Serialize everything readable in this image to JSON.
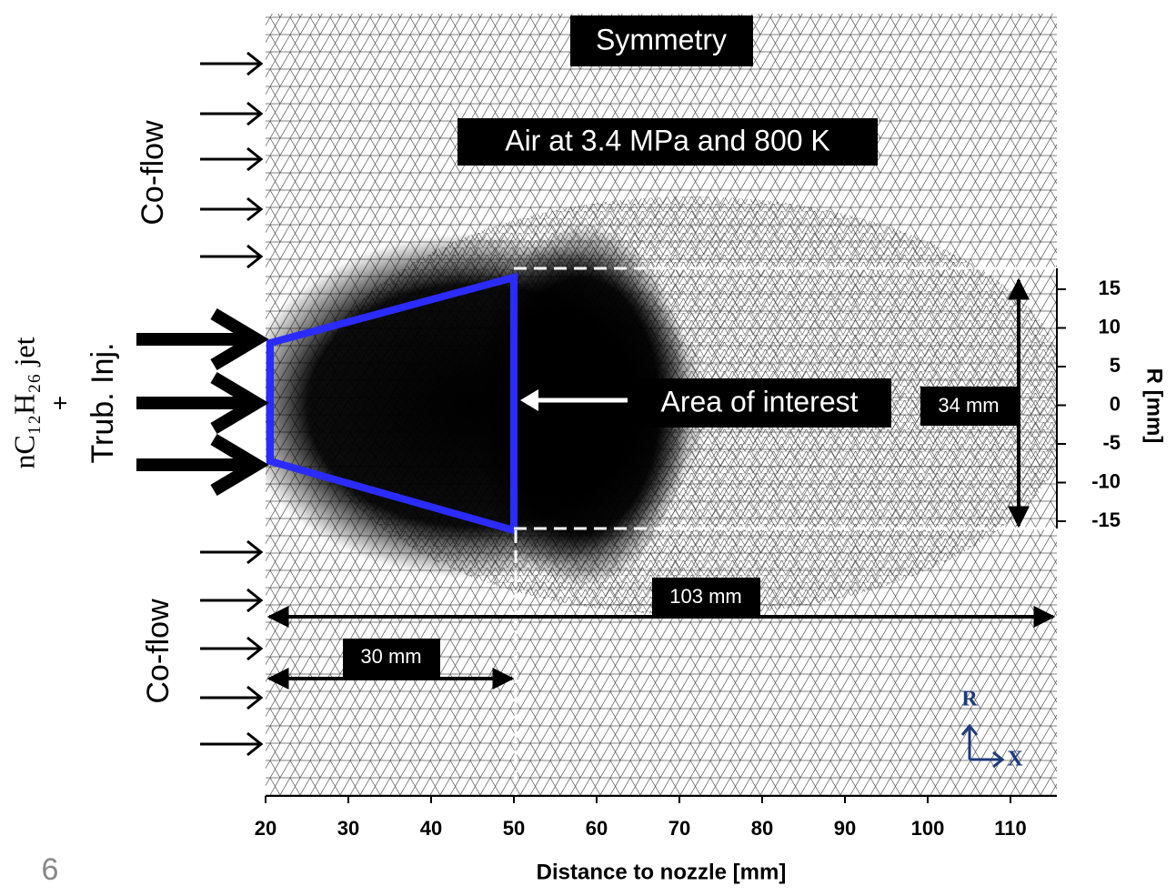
{
  "labels": {
    "symmetry": "Symmetry",
    "ambient": "Air at 3.4 MPa and 800 K",
    "area": "Area of interest",
    "coflow_top": "Co-flow",
    "coflow_bottom": "Co-flow",
    "jet_line1": "nC₁₂H₂₆ jet",
    "jet_line2": "+",
    "jet_line3": "Trub. Inj.",
    "dim_34": "34 mm",
    "dim_103": "103 mm",
    "dim_30": "30 mm",
    "axis_r": "R",
    "axis_x": "X",
    "page_number": "6"
  },
  "x_axis": {
    "title": "Distance to nozzle [mm]",
    "ticks": [
      20,
      30,
      40,
      50,
      60,
      70,
      80,
      90,
      100,
      110
    ]
  },
  "r_axis": {
    "title": "R [mm]",
    "ticks": [
      15,
      10,
      5,
      0,
      -5,
      -10,
      -15
    ]
  }
}
